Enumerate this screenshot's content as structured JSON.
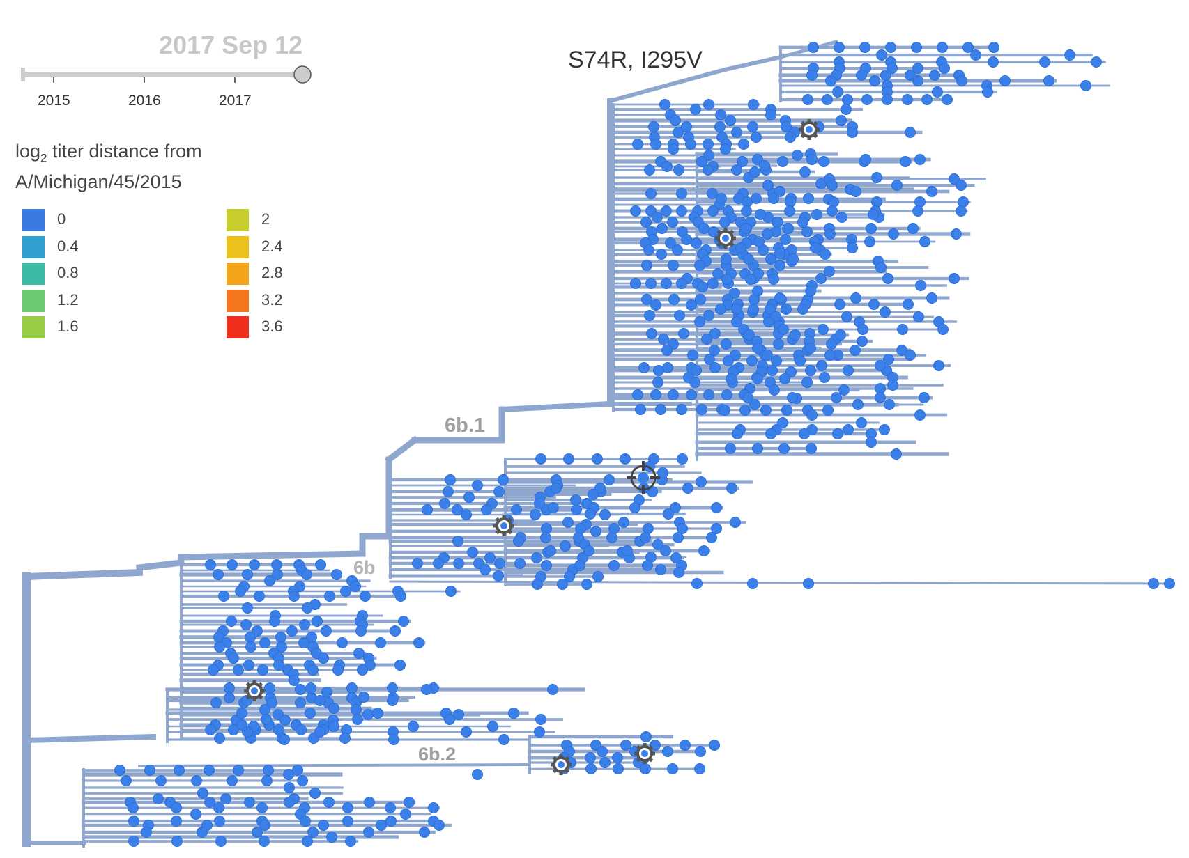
{
  "date_slider": {
    "current_date": "2017 Sep 12",
    "ticks": [
      "2015",
      "2016",
      "2017"
    ]
  },
  "legend": {
    "title_prefix": "log",
    "title_subscript": "2",
    "title_line1_rest": " titer distance from",
    "title_line2": "A/Michigan/45/2015",
    "items": [
      {
        "label": "0",
        "color": "#3b7fe8"
      },
      {
        "label": "0.4",
        "color": "#33a4d6"
      },
      {
        "label": "0.8",
        "color": "#3fc0a8"
      },
      {
        "label": "1.2",
        "color": "#6ecf76"
      },
      {
        "label": "1.6",
        "color": "#9fd348"
      },
      {
        "label": "2",
        "color": "#cdd42f"
      },
      {
        "label": "2.4",
        "color": "#f2c71d"
      },
      {
        "label": "2.8",
        "color": "#fba91c"
      },
      {
        "label": "3.2",
        "color": "#fb7a1e"
      },
      {
        "label": "3.6",
        "color": "#f6301d"
      }
    ]
  },
  "tree": {
    "mutation_label": "S74R, I295V",
    "clade_labels": [
      "6b.1",
      "6b",
      "6b.2"
    ],
    "branch_color": "#8fa7cf",
    "tip_color": "#3b7fe8",
    "tip_stroke": "#2c6fd6",
    "icons": [
      "gear-icon",
      "gear-icon",
      "gear-icon",
      "gear-icon",
      "gear-icon",
      "gear-icon",
      "crosshair-icon"
    ]
  }
}
